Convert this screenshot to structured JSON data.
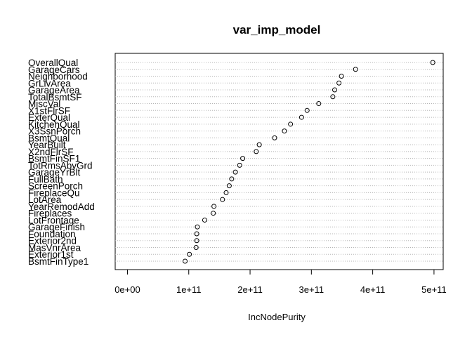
{
  "chart_data": {
    "type": "scatter",
    "title": "var_imp_model",
    "xlabel": "IncNodePurity",
    "ylabel": "",
    "xlim": [
      -20000000000.0,
      515000000000.0
    ],
    "xticks": [
      0,
      100000000000.0,
      200000000000.0,
      300000000000.0,
      400000000000.0,
      500000000000.0
    ],
    "xtick_labels": [
      "0e+00",
      "1e+11",
      "2e+11",
      "3e+11",
      "4e+11",
      "5e+11"
    ],
    "grid": "dotted horizontal lines per variable",
    "legend": "none",
    "variables": [
      {
        "name": "OverallQual",
        "value": 498000000000.0
      },
      {
        "name": "GarageCars",
        "value": 372000000000.0
      },
      {
        "name": "Neighborhood",
        "value": 349000000000.0
      },
      {
        "name": "GrLivArea",
        "value": 345000000000.0
      },
      {
        "name": "GarageArea",
        "value": 338000000000.0
      },
      {
        "name": "TotalBsmtSF",
        "value": 335000000000.0
      },
      {
        "name": "MiscVal",
        "value": 312000000000.0
      },
      {
        "name": "X1stFlrSF",
        "value": 293000000000.0
      },
      {
        "name": "ExterQual",
        "value": 284000000000.0
      },
      {
        "name": "KitchenQual",
        "value": 266000000000.0
      },
      {
        "name": "X3SsnPorch",
        "value": 256000000000.0
      },
      {
        "name": "BsmtQual",
        "value": 240000000000.0
      },
      {
        "name": "YearBuilt",
        "value": 215000000000.0
      },
      {
        "name": "X2ndFlrSF",
        "value": 210000000000.0
      },
      {
        "name": "BsmtFinSF1",
        "value": 188000000000.0
      },
      {
        "name": "TotRmsAbvGrd",
        "value": 183000000000.0
      },
      {
        "name": "GarageYrBlt",
        "value": 176000000000.0
      },
      {
        "name": "FullBath",
        "value": 170000000000.0
      },
      {
        "name": "ScreenPorch",
        "value": 166000000000.0
      },
      {
        "name": "FireplaceQu",
        "value": 161000000000.0
      },
      {
        "name": "LotArea",
        "value": 155000000000.0
      },
      {
        "name": "YearRemodAdd",
        "value": 141000000000.0
      },
      {
        "name": "Fireplaces",
        "value": 140000000000.0
      },
      {
        "name": "LotFrontage",
        "value": 126000000000.0
      },
      {
        "name": "GarageFinish",
        "value": 114000000000.0
      },
      {
        "name": "Foundation",
        "value": 113000000000.0
      },
      {
        "name": "Exterior2nd",
        "value": 113000000000.0
      },
      {
        "name": "MasVnrArea",
        "value": 112000000000.0
      },
      {
        "name": "Exterior1st",
        "value": 101000000000.0
      },
      {
        "name": "BsmtFinType1",
        "value": 94000000000.0
      }
    ]
  }
}
